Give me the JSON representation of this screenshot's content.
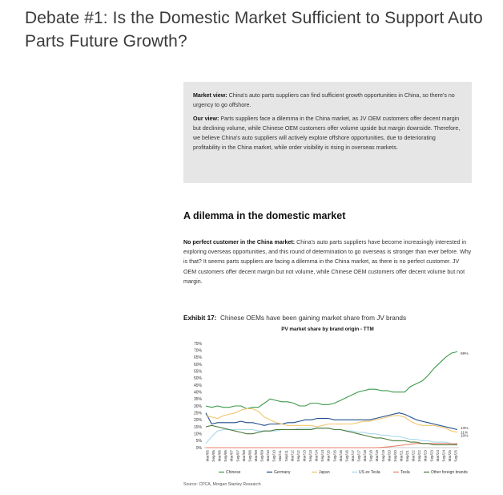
{
  "heading": "Debate #1: Is the Domestic Market Sufficient to Support Auto Parts Future Growth?",
  "viewbox": {
    "market_label": "Market view:",
    "market_text": "China's auto parts suppliers can find sufficient growth opportunities in China, so there's no urgency to go offshore.",
    "our_label": "Our view:",
    "our_text": "Parts suppliers face a dilemma in the China market, as JV OEM customers offer decent margin but declining volume, while Chinese OEM customers offer volume upside but margin downside. Therefore, we believe China's auto suppliers will actively explore offshore opportunities, due to deteriorating profitability in the China market, while order visibility is rising in overseas markets."
  },
  "section_title": "A dilemma in the domestic market",
  "body": {
    "lead": "No perfect customer in the China market:",
    "text": "China's auto parts suppliers have become increasingly interested in exploring overseas opportunities, and this round of determination to go overseas is stronger than ever before. Why is that? It seems parts suppliers are facing a dilemma in the China market, as there is no perfect customer. JV OEM customers offer decent margin but not volume, while Chinese OEM customers offer decent volume but not margin."
  },
  "exhibit": {
    "label": "Exhibit 17:",
    "text": "Chinese OEMs have been gaining market share from JV brands"
  },
  "chart_data": {
    "type": "line",
    "title": "PV market share by brand origin - TTM",
    "xlabel": "",
    "ylabel": "",
    "ylim": [
      0,
      75
    ],
    "y_ticks": [
      "0%",
      "5%",
      "10%",
      "15%",
      "20%",
      "25%",
      "30%",
      "35%",
      "40%",
      "45%",
      "50%",
      "55%",
      "60%",
      "65%",
      "70%",
      "75%"
    ],
    "x_tick_labels": [
      "Mar/05",
      "Sep/05",
      "Mar/06",
      "Sep/06",
      "Mar/07",
      "Sep/07",
      "Mar/08",
      "Sep/08",
      "Mar/09",
      "Sep/09",
      "Mar/10",
      "Sep/10",
      "Mar/11",
      "Sep/11",
      "Mar/12",
      "Sep/12",
      "Mar/13",
      "Sep/13",
      "Mar/14",
      "Sep/14",
      "Mar/15",
      "Sep/15",
      "Mar/16",
      "Sep/16",
      "Mar/17",
      "Sep/17",
      "Mar/18",
      "Sep/18",
      "Mar/19",
      "Sep/19",
      "Mar/20",
      "Sep/20",
      "Mar/21",
      "Sep/21",
      "Mar/22",
      "Sep/22",
      "Mar/23",
      "Sep/23",
      "Mar/24",
      "Sep/24",
      "Mar/25",
      "Sep/25"
    ],
    "end_labels": [
      "69%",
      "13%",
      "11%",
      "10%"
    ],
    "legend_position": "bottom",
    "grid": false,
    "colors": {
      "Chinese": "#3d9a4a",
      "Germany": "#1f4e8c",
      "Japan": "#f2c46d",
      "US ex Tesla": "#a8d8ea",
      "Tesla": "#e8826b",
      "Other foreign brands": "#4a7a3a"
    },
    "series": [
      {
        "name": "Chinese",
        "values": [
          30,
          29,
          30,
          29,
          29,
          30,
          30,
          28,
          29,
          29,
          32,
          35,
          34,
          33,
          33,
          32,
          30,
          30,
          32,
          32,
          31,
          31,
          32,
          34,
          36,
          38,
          40,
          41,
          42,
          42,
          41,
          41,
          40,
          40,
          40,
          44,
          46,
          48,
          52,
          57,
          61,
          65,
          68,
          69
        ]
      },
      {
        "name": "Germany",
        "values": [
          25,
          17,
          18,
          18,
          18,
          18,
          19,
          18,
          18,
          17,
          16,
          17,
          17,
          17,
          18,
          18,
          19,
          20,
          20,
          21,
          21,
          21,
          20,
          20,
          20,
          20,
          20,
          20,
          20,
          21,
          22,
          23,
          24,
          25,
          24,
          22,
          20,
          19,
          18,
          17,
          16,
          15,
          14,
          13
        ]
      },
      {
        "name": "Japan",
        "values": [
          23,
          22,
          21,
          23,
          24,
          25,
          27,
          28,
          28,
          26,
          22,
          20,
          18,
          17,
          16,
          16,
          16,
          16,
          16,
          15,
          16,
          17,
          17,
          17,
          17,
          17,
          18,
          19,
          19,
          20,
          21,
          22,
          23,
          23,
          22,
          19,
          17,
          16,
          16,
          16,
          15,
          14,
          12,
          11
        ]
      },
      {
        "name": "US ex Tesla",
        "values": [
          3,
          8,
          12,
          13,
          13,
          13,
          13,
          13,
          13,
          12,
          12,
          12,
          12,
          13,
          13,
          13,
          14,
          14,
          14,
          14,
          14,
          14,
          13,
          13,
          12,
          12,
          11,
          11,
          10,
          10,
          9,
          9,
          8,
          8,
          7,
          6,
          6,
          5,
          5,
          4,
          4,
          4,
          3,
          3
        ]
      },
      {
        "name": "Tesla",
        "values": [
          0,
          0,
          0,
          0,
          0,
          0,
          0,
          0,
          0,
          0,
          0,
          0,
          0,
          0,
          0,
          0,
          0,
          0,
          0,
          0,
          0,
          0,
          0,
          0,
          0,
          0,
          0,
          0,
          0,
          0,
          0.2,
          0.5,
          1,
          1.5,
          2,
          2.5,
          3,
          3,
          3,
          3,
          3,
          3,
          2.8,
          2.7
        ]
      },
      {
        "name": "Other foreign brands",
        "values": [
          15,
          16,
          15,
          14,
          13,
          12,
          11,
          10,
          10,
          11,
          12,
          12,
          13,
          13,
          13,
          13,
          13,
          13,
          13,
          14,
          14,
          14,
          13,
          13,
          12,
          11,
          10,
          9,
          8,
          7,
          7,
          6,
          5,
          5,
          5,
          4,
          4,
          3,
          3,
          2,
          2,
          2,
          2,
          2
        ]
      }
    ]
  },
  "source": "Source: CPCA, Morgan Stanley Research"
}
